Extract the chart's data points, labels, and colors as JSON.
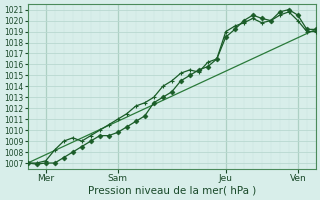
{
  "xlabel": "Pression niveau de la mer( hPa )",
  "ylim": [
    1006.5,
    1021.5
  ],
  "yticks": [
    1007,
    1008,
    1009,
    1010,
    1011,
    1012,
    1013,
    1014,
    1015,
    1016,
    1017,
    1018,
    1019,
    1020,
    1021
  ],
  "xtick_positions": [
    6,
    30,
    66,
    90
  ],
  "xtick_labels": [
    "Mer",
    "Sam",
    "Jeu",
    "Ven"
  ],
  "xlim": [
    0,
    96
  ],
  "bg_color": "#d8eeea",
  "grid_major_color": "#b8d8d0",
  "grid_minor_color": "#c8e4de",
  "line_color": "#1a5c28",
  "trend_color": "#2a7a3a",
  "x_hours": [
    0,
    3,
    6,
    9,
    12,
    15,
    18,
    21,
    24,
    27,
    30,
    33,
    36,
    39,
    42,
    45,
    48,
    51,
    54,
    57,
    60,
    63,
    66,
    69,
    72,
    75,
    78,
    81,
    84,
    87,
    90,
    93,
    96
  ],
  "line1_y": [
    1007.0,
    1006.9,
    1007.0,
    1007.0,
    1007.5,
    1008.0,
    1008.5,
    1009.0,
    1009.5,
    1009.5,
    1009.8,
    1010.3,
    1010.8,
    1011.3,
    1012.5,
    1013.0,
    1013.5,
    1014.5,
    1015.0,
    1015.5,
    1015.8,
    1016.5,
    1018.5,
    1019.2,
    1020.0,
    1020.5,
    1020.2,
    1020.0,
    1020.8,
    1021.0,
    1020.5,
    1019.2,
    1019.2
  ],
  "line2_y": [
    1007.0,
    1007.0,
    1007.2,
    1008.2,
    1009.0,
    1009.3,
    1009.0,
    1009.5,
    1010.0,
    1010.5,
    1011.0,
    1011.5,
    1012.2,
    1012.5,
    1013.0,
    1014.0,
    1014.5,
    1015.2,
    1015.5,
    1015.3,
    1016.2,
    1016.5,
    1019.0,
    1019.5,
    1019.8,
    1020.2,
    1019.8,
    1020.0,
    1020.5,
    1020.8,
    1020.0,
    1019.0,
    1019.0
  ],
  "trend_x": [
    0,
    96
  ],
  "trend_y": [
    1007.0,
    1019.2
  ]
}
